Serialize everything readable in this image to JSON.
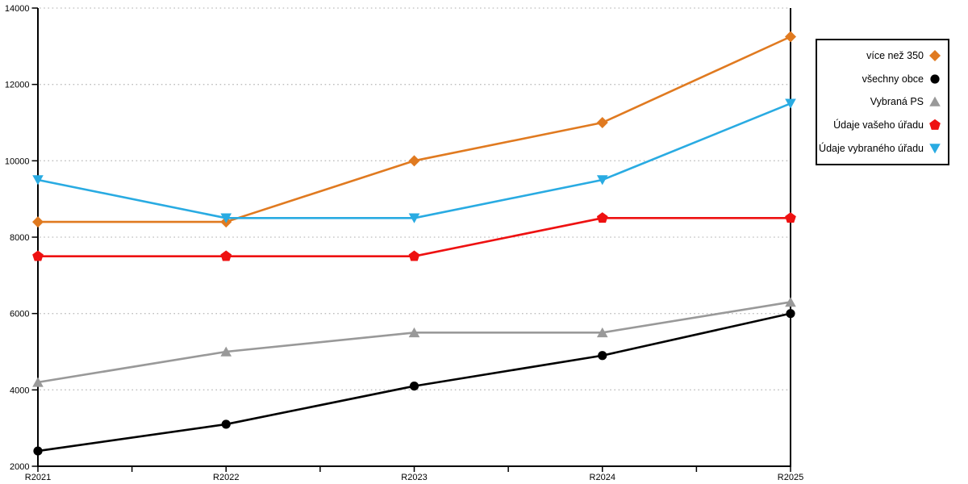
{
  "chart_data": {
    "type": "line",
    "categories": [
      "R2021",
      "R2022",
      "R2023",
      "R2024",
      "R2025"
    ],
    "series": [
      {
        "name": "více než 350",
        "marker": "diamond",
        "color": "#E07A20",
        "values": [
          8400,
          8400,
          10000,
          11000,
          13250
        ]
      },
      {
        "name": "všechny obce",
        "marker": "circle",
        "color": "#000000",
        "values": [
          2400,
          3100,
          4100,
          4900,
          6000
        ]
      },
      {
        "name": "Vybraná PS",
        "marker": "triangle-up",
        "color": "#999999",
        "values": [
          4200,
          5000,
          5500,
          5500,
          6300
        ]
      },
      {
        "name": "Údaje vašeho úřadu",
        "marker": "pentagon",
        "color": "#EE1111",
        "values": [
          7500,
          7500,
          7500,
          8500,
          8500
        ]
      },
      {
        "name": "Údaje vybraného úřadu",
        "marker": "triangle-down",
        "color": "#29ABE2",
        "values": [
          9500,
          8500,
          8500,
          9500,
          11500
        ]
      }
    ],
    "title": "",
    "xlabel": "",
    "ylabel": "",
    "ylim": [
      2000,
      14000
    ],
    "yticks": [
      2000,
      4000,
      6000,
      8000,
      10000,
      12000,
      14000
    ],
    "grid": "horizontal-dotted",
    "grid_color": "#BDBDBD",
    "axis_color": "#000000",
    "legend_position": "top-right",
    "legend_items": [
      "více než 350",
      "všechny obce",
      "Vybraná PS",
      "Údaje vašeho úřadu",
      "Údaje vybraného úřadu"
    ]
  }
}
